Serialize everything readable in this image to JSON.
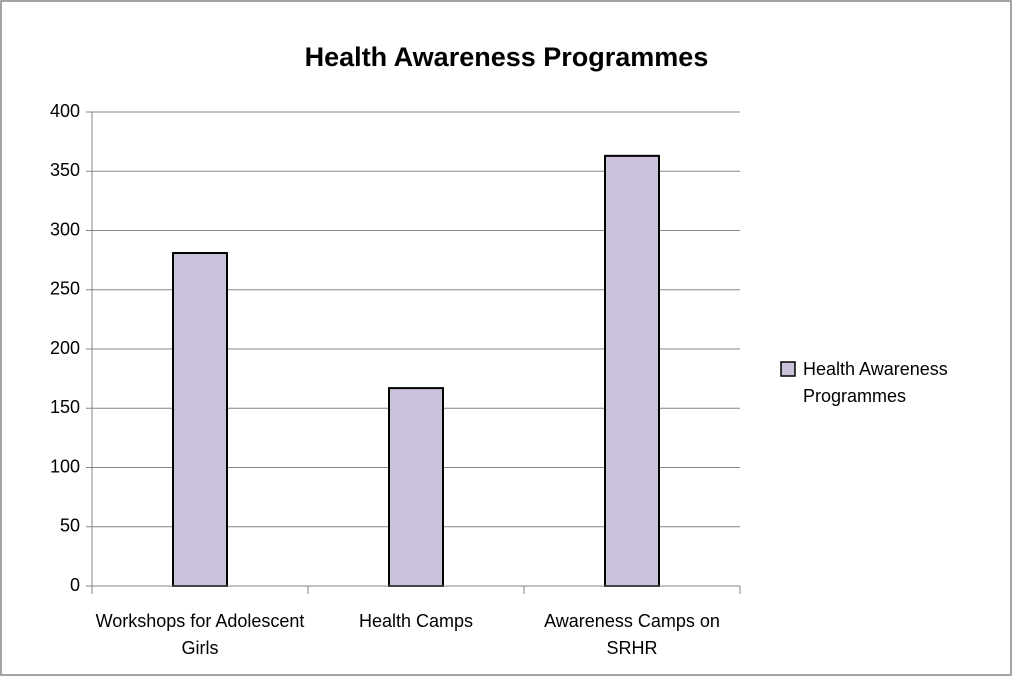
{
  "chart_data": {
    "type": "bar",
    "title": "Health Awareness Programmes",
    "categories": [
      "Workshops for Adolescent Girls",
      "Health Camps",
      "Awareness Camps on SRHR"
    ],
    "series": [
      {
        "name": "Health Awareness Programmes",
        "color": "#ccc1da",
        "values": [
          281,
          167,
          363
        ]
      }
    ],
    "ylim": [
      0,
      400
    ],
    "yticks": [
      0,
      50,
      100,
      150,
      200,
      250,
      300,
      350,
      400
    ],
    "grid": true,
    "legend": "right"
  }
}
